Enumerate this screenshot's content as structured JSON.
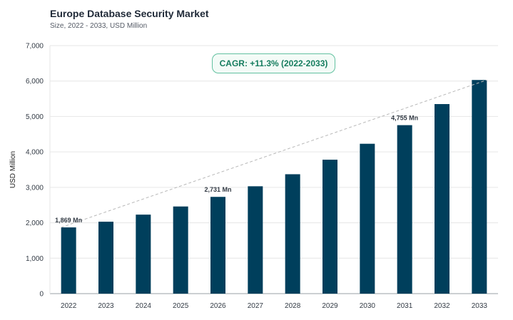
{
  "title": "Europe Database Security Market",
  "subtitle": "Size, 2022 - 2033, USD Million",
  "cagr_badge": "CAGR: +11.3% (2022-2033)",
  "colors": {
    "bar": "#003f5c",
    "badge_border": "#62c1a0",
    "badge_text": "#167d5f",
    "trend": "#b8b8b8"
  },
  "chart_data": {
    "type": "bar",
    "categories": [
      "2022",
      "2023",
      "2024",
      "2025",
      "2026",
      "2027",
      "2028",
      "2029",
      "2030",
      "2031",
      "2032",
      "2033"
    ],
    "values": [
      1869,
      2030,
      2230,
      2460,
      2731,
      3030,
      3370,
      3780,
      4230,
      4755,
      5350,
      6030
    ],
    "data_labels": [
      {
        "category": "2022",
        "text": "1,869 Mn"
      },
      {
        "category": "2026",
        "text": "2,731 Mn"
      },
      {
        "category": "2031",
        "text": "4,755 Mn"
      }
    ],
    "ylabel": "USD Million",
    "xlabel": "",
    "ylim": [
      0,
      7000
    ],
    "yticks": [
      0,
      1000,
      2000,
      3000,
      4000,
      5000,
      6000,
      7000
    ],
    "ytick_labels": [
      "0",
      "1,000",
      "2,000",
      "3,000",
      "4,000",
      "5,000",
      "6,000",
      "7,000"
    ],
    "grid": true,
    "trend_line": "dashed, from first to last bar"
  }
}
